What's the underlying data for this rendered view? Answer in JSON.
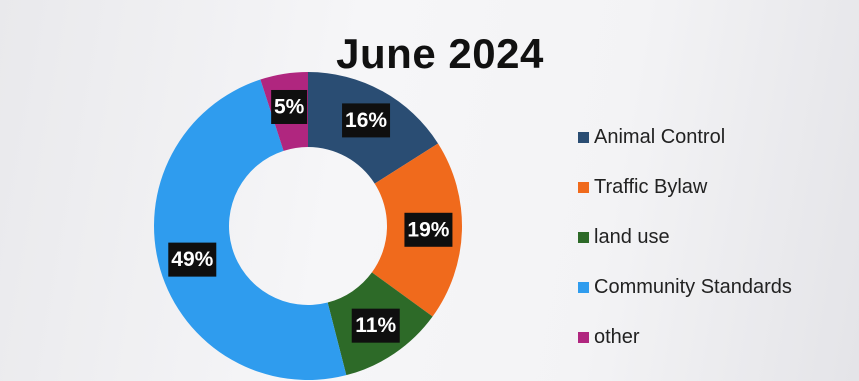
{
  "chart_data": {
    "type": "pie",
    "title": "June 2024",
    "donut": true,
    "legend_position": "right",
    "slices": [
      {
        "name": "Animal Control",
        "value": 16,
        "label": "16%",
        "color": "#2a4d73"
      },
      {
        "name": "Traffic Bylaw",
        "value": 19,
        "label": "19%",
        "color": "#f06a1c"
      },
      {
        "name": "land use",
        "value": 11,
        "label": "11%",
        "color": "#2d6a28"
      },
      {
        "name": "Community Standards",
        "value": 49,
        "label": "49%",
        "color": "#2f9cee"
      },
      {
        "name": "other",
        "value": 5,
        "label": "5%",
        "color": "#b0267f"
      }
    ]
  }
}
